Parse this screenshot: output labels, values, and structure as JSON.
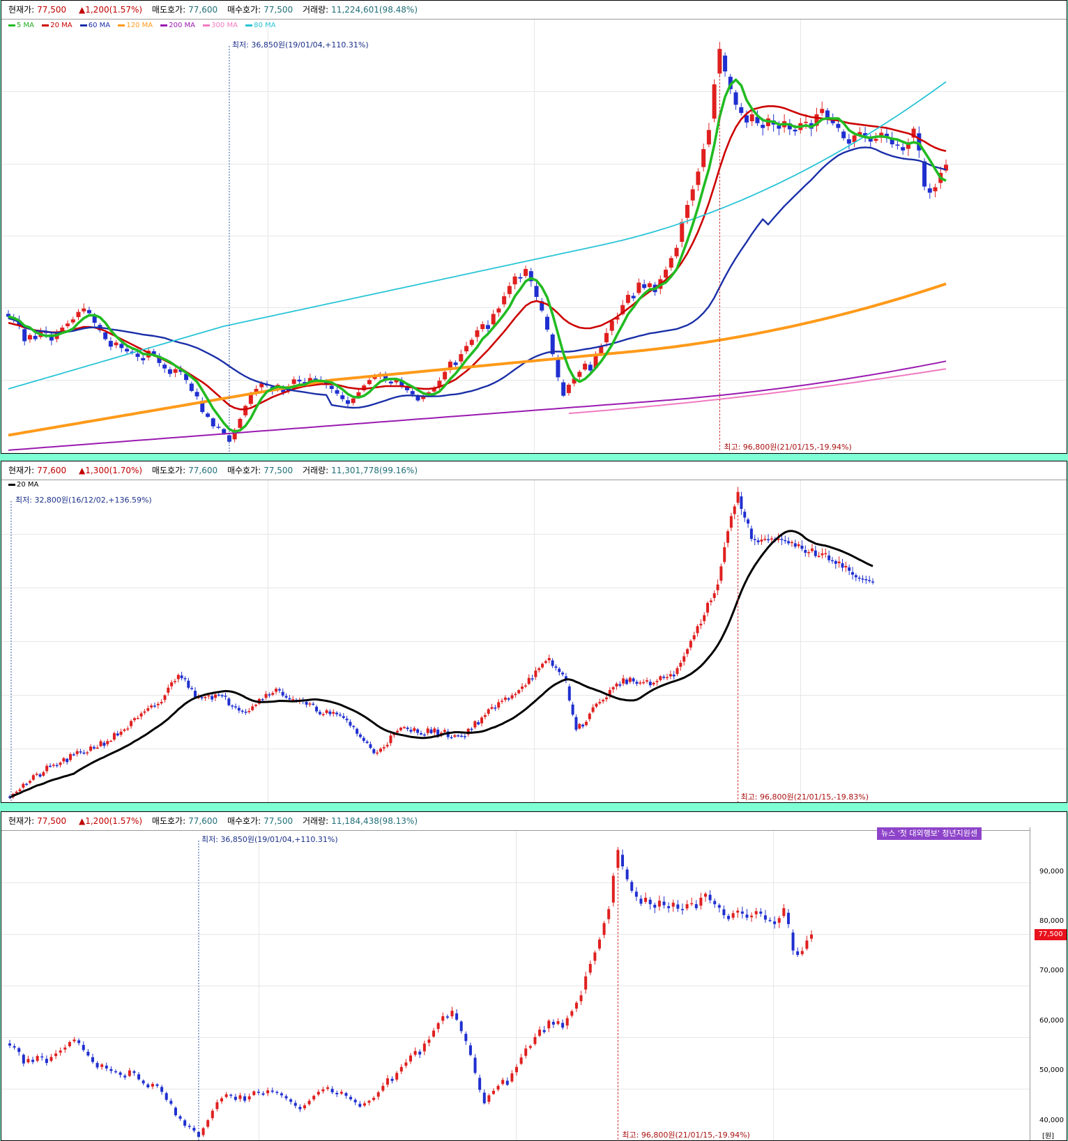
{
  "colors": {
    "up": "#e01f1f",
    "down": "#1f2fd0",
    "ma5": "#22bb22",
    "ma20": "#cc0000",
    "ma60": "#1a2fa8",
    "ma120": "#ff9a1a",
    "ma200": "#9a1ab0",
    "ma300": "#f07ac0",
    "ma80": "#28c4d6",
    "ma20_black": "#000000",
    "bg": "#7fffd4"
  },
  "panels": [
    {
      "header": {
        "price_label": "현재가:",
        "price": "77,500",
        "change": "1,200(1.57%)",
        "ask_label": "매도호가:",
        "ask": "77,600",
        "bid_label": "매수호가:",
        "bid": "77,500",
        "volume_label": "거래량:",
        "volume": "11,224,601(98.48%)"
      },
      "legend": [
        "5 MA",
        "20 MA",
        "60 MA",
        "120 MA",
        "200 MA",
        "300 MA",
        "80 MA"
      ],
      "low_annotation": "최저: 36,850원(19/01/04,+110.31%)",
      "high_annotation": "최고: 96,800원(21/01/15,-19.94%)"
    },
    {
      "header": {
        "price_label": "현재가:",
        "price": "77,600",
        "change": "1,300(1.70%)",
        "ask_label": "매도호가:",
        "ask": "77,600",
        "bid_label": "매수호가:",
        "bid": "77,500",
        "volume_label": "거래량:",
        "volume": "11,301,778(99.16%)"
      },
      "legend": [
        "20 MA"
      ],
      "low_annotation": "최저: 32,800원(16/12/02,+136.59%)",
      "high_annotation": "최고: 96,800원(21/01/15,-19.83%)"
    },
    {
      "header": {
        "price_label": "현재가:",
        "price": "77,500",
        "change": "1,200(1.57%)",
        "ask_label": "매도호가:",
        "ask": "77,600",
        "bid_label": "매수호가:",
        "bid": "77,500",
        "volume_label": "거래량:",
        "volume": "11,184,438(98.13%)"
      },
      "news": "뉴스 '첫 대외행보' 청년지원센",
      "low_annotation": "최저: 36,850원(19/01/04,+110.31%)",
      "high_annotation": "최고: 96,800원(21/01/15,-19.94%)",
      "y_ticks": [
        "90,000",
        "80,000",
        "70,000",
        "60,000",
        "50,000",
        "40,000"
      ],
      "current_price_tag": "77,500",
      "unit": "[원]"
    }
  ],
  "chart_data": [
    {
      "type": "candlestick",
      "title": "",
      "moving_averages": [
        "5 MA",
        "20 MA",
        "60 MA",
        "120 MA",
        "200 MA",
        "300 MA",
        "80 MA"
      ],
      "ylim": [
        36000,
        98000
      ],
      "close": [
        55200,
        54800,
        53900,
        51600,
        52500,
        51900,
        53100,
        52800,
        51700,
        52900,
        53600,
        54200,
        54800,
        55900,
        56400,
        55700,
        54300,
        53200,
        51900,
        50800,
        51400,
        50600,
        50100,
        49900,
        49300,
        48800,
        50200,
        49700,
        48400,
        47600,
        46800,
        47500,
        47100,
        45900,
        44300,
        43500,
        41200,
        40500,
        39100,
        38900,
        38100,
        36850,
        38600,
        40200,
        42100,
        43800,
        44600,
        45400,
        45100,
        44300,
        45200,
        44100,
        45000,
        46000,
        45700,
        45300,
        46200,
        45900,
        45800,
        45200,
        44600,
        43900,
        43100,
        42400,
        43200,
        44100,
        45100,
        45900,
        46400,
        46800,
        45800,
        45400,
        45900,
        45100,
        44400,
        43800,
        42900,
        43600,
        44100,
        44700,
        45800,
        47100,
        48600,
        48100,
        49700,
        50900,
        51800,
        53200,
        54100,
        53400,
        55600,
        56400,
        58200,
        59700,
        61100,
        60800,
        62200,
        60400,
        58100,
        56100,
        53300,
        49700,
        46300,
        43600,
        45200,
        46100,
        47100,
        48300,
        47300,
        49600,
        50900,
        52800,
        54600,
        55100,
        56900,
        58400,
        57900,
        60200,
        59400,
        60100,
        58800,
        60700,
        62100,
        63800,
        65300,
        69100,
        71600,
        73900,
        76500,
        79800,
        82600,
        89300,
        94500,
        91200,
        88600,
        86300,
        85100,
        83700,
        84900,
        83600,
        82900,
        84300,
        83400,
        82800,
        83900,
        82700,
        82400,
        83600,
        83800,
        82800,
        84900,
        85700,
        84400,
        83600,
        82900,
        81400,
        80600,
        81800,
        82300,
        81700,
        80900,
        81300,
        82200,
        81700,
        80500,
        80300,
        79600,
        80800,
        82800,
        79600,
        74300,
        73400,
        74200,
        76300,
        77500
      ],
      "ma20": [
        54300,
        54100,
        53900,
        53600,
        53400,
        53200,
        53100,
        53000,
        52900,
        52900,
        53000,
        53100,
        53300,
        53500,
        53700,
        53700,
        53600,
        53400,
        53100,
        52700,
        52300,
        51900,
        51500,
        51100,
        50700,
        50300,
        49900,
        49500,
        49200,
        48800,
        48400,
        48000,
        47600,
        47100,
        46600,
        46100,
        45600,
        45000,
        44300,
        43600,
        42900,
        42200,
        41800,
        41600,
        41600,
        41800,
        42200,
        42600,
        43000,
        43400,
        43700,
        44000,
        44300,
        44600,
        44800,
        45000,
        45100,
        45200,
        45300,
        45300,
        45300,
        45200,
        45000,
        44800,
        44700,
        44600,
        44600,
        44700,
        44800,
        44900,
        45000,
        45000,
        45000,
        45000,
        44900,
        44800,
        44700,
        44600,
        44600,
        44700,
        44900,
        45200,
        45600,
        46000,
        46600,
        47200,
        47900,
        48700,
        49500,
        50300,
        51200,
        52100,
        53000,
        54000,
        55000,
        55900,
        56800,
        57300,
        57500,
        57300,
        57000,
        56400,
        55700,
        54900,
        54300,
        53900,
        53600,
        53500,
        53500,
        53700,
        53900,
        54300,
        54700,
        55200,
        55800,
        56400,
        57000,
        57700,
        58300,
        58900,
        59400,
        60000,
        60600,
        61300,
        62100,
        63200,
        64500,
        66000,
        67700,
        69700,
        71900,
        74400,
        77000,
        79400,
        81400,
        83000,
        84200,
        85000,
        85600,
        85800,
        86000,
        86100,
        86100,
        86000,
        85800,
        85500,
        85200,
        84900,
        84700,
        84500,
        84400,
        84300,
        84200,
        84100,
        84000,
        83800,
        83600,
        83500,
        83400,
        83300,
        83200,
        83100,
        83000,
        82900,
        82700,
        82500,
        82300,
        82100,
        81800,
        81300,
        80900,
        80400,
        80000,
        79700,
        79500
      ]
    },
    {
      "type": "candlestick",
      "title": "",
      "moving_averages": [
        "20 MA"
      ],
      "ylim": [
        32000,
        98000
      ],
      "first_low": 32800,
      "high": 96800,
      "last_close": 77600
    },
    {
      "type": "candlestick",
      "title": "",
      "ylim": [
        37000,
        97500
      ],
      "y_ticks": [
        90000,
        80000,
        70000,
        60000,
        50000,
        40000
      ],
      "low": 36850,
      "high": 96800,
      "last_close": 77500
    }
  ]
}
